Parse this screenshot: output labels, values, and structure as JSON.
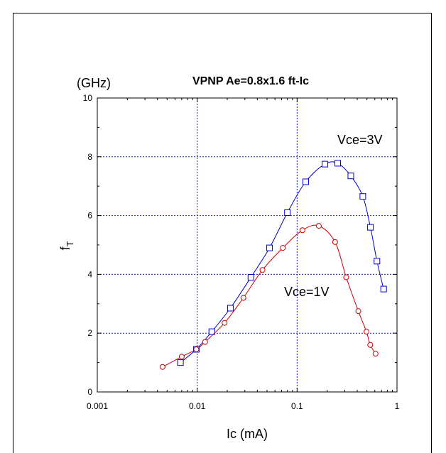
{
  "chart_data": {
    "type": "line",
    "title": "VPNP Ae=0.8x1.6  ft-Ic",
    "xlabel": "Ic (mA)",
    "ylabel": "f",
    "ylabel_subscript": "T",
    "y_unit": "(GHz)",
    "x_scale": "log",
    "xlim": [
      0.001,
      1
    ],
    "ylim": [
      0,
      10
    ],
    "x_ticks": [
      "0.001",
      "0.01",
      "0.1",
      "1"
    ],
    "y_ticks": [
      "0",
      "2",
      "4",
      "6",
      "8",
      "10"
    ],
    "grid": true,
    "series": [
      {
        "name": "Vce=3V",
        "color": "#0000cc",
        "marker": "square",
        "x": [
          0.0068,
          0.0098,
          0.014,
          0.0215,
          0.0345,
          0.053,
          0.08,
          0.122,
          0.19,
          0.255,
          0.345,
          0.455,
          0.542,
          0.63,
          0.735
        ],
        "y": [
          1.0,
          1.45,
          2.05,
          2.85,
          3.9,
          4.9,
          6.1,
          7.15,
          7.75,
          7.78,
          7.35,
          6.65,
          5.6,
          4.45,
          3.5
        ]
      },
      {
        "name": "Vce=1V",
        "color": "#cc0000",
        "marker": "circle",
        "x": [
          0.0045,
          0.007,
          0.0098,
          0.012,
          0.0188,
          0.029,
          0.045,
          0.072,
          0.113,
          0.165,
          0.24,
          0.31,
          0.41,
          0.495,
          0.54,
          0.61
        ],
        "y": [
          0.85,
          1.2,
          1.45,
          1.7,
          2.35,
          3.2,
          4.15,
          4.9,
          5.5,
          5.65,
          5.1,
          3.9,
          2.75,
          2.05,
          1.6,
          1.3
        ]
      }
    ],
    "annotations": [
      "Vce=3V",
      "Vce=1V"
    ]
  }
}
